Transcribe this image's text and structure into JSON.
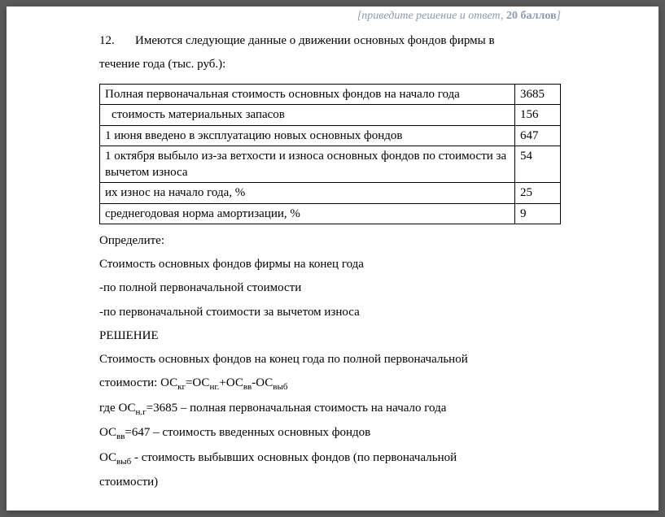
{
  "header": {
    "note_italic": "[приведите решение и ответ, ",
    "note_bold": "20 баллов",
    "note_close": "]"
  },
  "intro": {
    "number": "12.",
    "text_line1": "Имеются следующие данные о движении основных фондов фирмы в",
    "text_line2": "течение года (тыс. руб.):"
  },
  "table": {
    "rows": [
      {
        "label": "Полная первоначальная стоимость основных фондов на начало года",
        "value": "3685",
        "indent": false
      },
      {
        "label": " стоимость материальных запасов",
        "value": "156",
        "indent": true
      },
      {
        "label": "1 июня введено в эксплуатацию новых основных фондов",
        "value": "647",
        "indent": false
      },
      {
        "label": "1 октября выбыло из-за ветхости и износа основных фондов по стоимости за вычетом износа",
        "value": "54",
        "indent": false
      },
      {
        "label": "их износ на начало года, %",
        "value": "25",
        "indent": false
      },
      {
        "label": "среднегодовая норма амортизации, %",
        "value": "9",
        "indent": false
      }
    ]
  },
  "body": {
    "p1": "Определите:",
    "p2": "Стоимость основных фондов фирмы на конец года",
    "p3": "-по полной первоначальной стоимости",
    "p4": "-по первоначальной стоимости за вычетом износа",
    "p5": "РЕШЕНИЕ",
    "p6": "Стоимость основных фондов на конец года по полной первоначальной",
    "p7_prefix": "стоимости:  ОС",
    "p7_sub1": "кг",
    "p7_eq1": "=ОС",
    "p7_sub2": "нг.",
    "p7_eq2": "+ОС",
    "p7_sub3": "вв",
    "p7_eq3": "-ОС",
    "p7_sub4": "выб",
    "p8_prefix": "где ОС",
    "p8_sub": "н.г",
    "p8_rest": "=3685 – полная первоначальная стоимость на  начало года",
    "p9_prefix": "ОС",
    "p9_sub": "вв",
    "p9_rest": "=647 – стоимость введенных основных фондов",
    "p10_prefix": "ОС",
    "p10_sub": "выб",
    "p10_rest": " - стоимость выбывших основных фондов (по первоначальной",
    "p11": "стоимости)"
  }
}
